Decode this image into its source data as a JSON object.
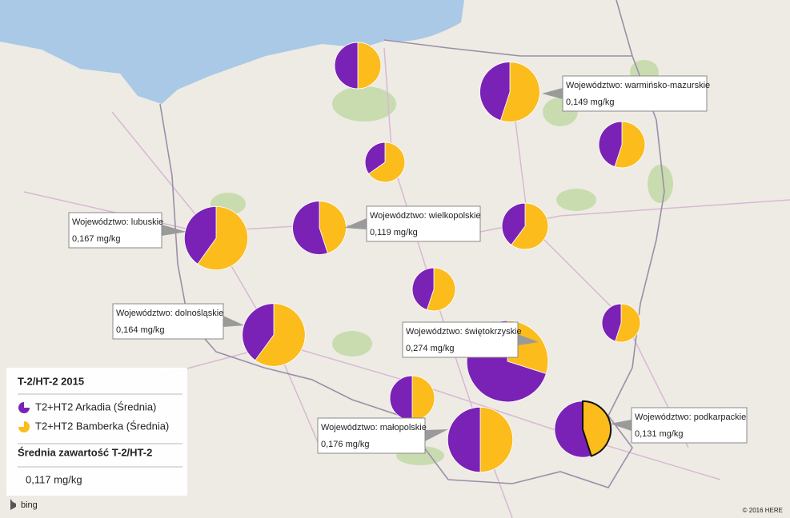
{
  "legend": {
    "title": "T-2/HT-2 2015",
    "items": [
      "T2+HT2 Arkadia (Średnia)",
      "T2+HT2 Bamberka (Średnia)"
    ],
    "colors": [
      "#7a22b5",
      "#fbbc1c"
    ]
  },
  "summary": {
    "title": "Średnia zawartość T-2/HT-2",
    "value": "0,117 mg/kg"
  },
  "pies": [
    {
      "arkadia": 0.089,
      "bamberka": 0.089
    },
    {
      "arkadia": 0.134,
      "bamberka": 0.164
    },
    {
      "arkadia": 0.08,
      "bamberka": 0.098
    },
    {
      "arkadia": 0.046,
      "bamberka": 0.086
    },
    {
      "arkadia": 0.134,
      "bamberka": 0.2
    },
    {
      "arkadia": 0.131,
      "bamberka": 0.107
    },
    {
      "arkadia": 0.071,
      "bamberka": 0.107
    },
    {
      "arkadia": 0.069,
      "bamberka": 0.085
    },
    {
      "arkadia": 0.055,
      "bamberka": 0.067
    },
    {
      "arkadia": 0.131,
      "bamberka": 0.197
    },
    {
      "arkadia": 0.384,
      "bamberka": 0.164
    },
    {
      "arkadia": 0.083,
      "bamberka": 0.083
    },
    {
      "arkadia": 0.176,
      "bamberka": 0.176
    },
    {
      "arkadia": 0.144,
      "bamberka": 0.118
    }
  ],
  "callouts": [
    {
      "label": "Województwo: warmińsko-mazurskie",
      "value": "0,149 mg/kg"
    },
    {
      "label": "Województwo: wielkopolskie",
      "value": "0,119 mg/kg"
    },
    {
      "label": "Województwo: lubuskie",
      "value": "0,167 mg/kg"
    },
    {
      "label": "Województwo: dolnośląskie",
      "value": "0,164 mg/kg"
    },
    {
      "label": "Województwo: świętokrzyskie",
      "value": "0,274 mg/kg"
    },
    {
      "label": "Województwo: małopolskie",
      "value": "0,176 mg/kg"
    },
    {
      "label": "Województwo: podkarpackie",
      "value": "0,131 mg/kg"
    }
  ],
  "attribution": {
    "logo": "bing",
    "copyright": "© 2016 HERE"
  }
}
